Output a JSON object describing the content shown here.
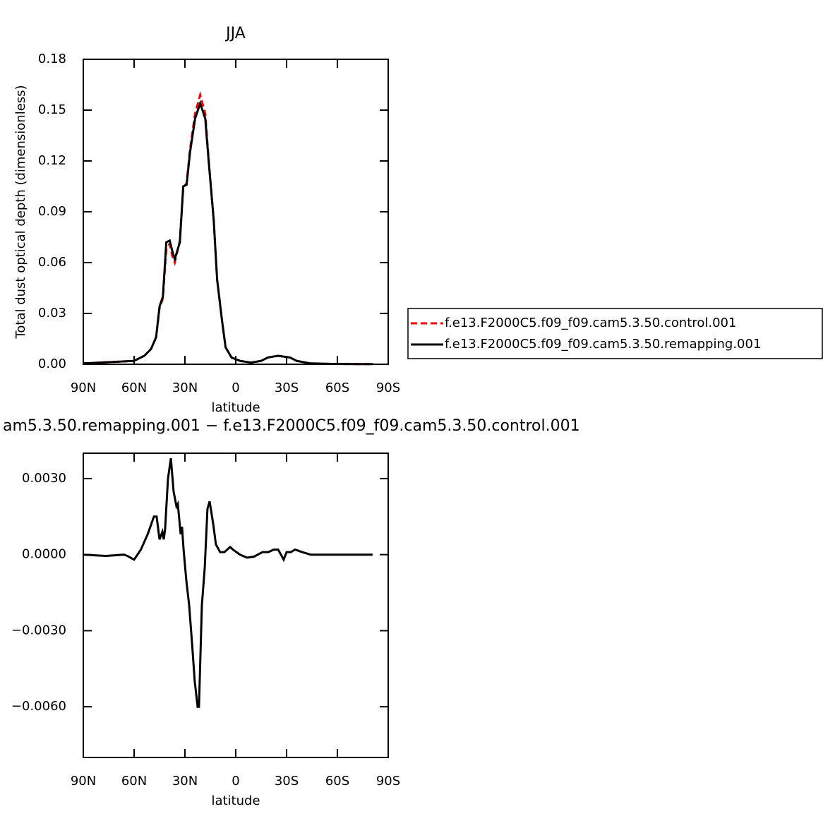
{
  "chart_data": [
    {
      "type": "line",
      "title": "JJA",
      "ylabel": "Total dust optical depth (dimensionless)",
      "xlabel": "latitude",
      "x": [
        90,
        60,
        54,
        50,
        47,
        45,
        43,
        41,
        39,
        37.5,
        36,
        33,
        31,
        29,
        27,
        24,
        21,
        18,
        16,
        13,
        11,
        8,
        6,
        2.5,
        -2.5,
        -9,
        -15,
        -19,
        -25,
        -32,
        -36,
        -44,
        -57,
        -81
      ],
      "series": [
        {
          "name": "f.e13.F2000C5.f09_f09.cam5.3.50.control.001",
          "color": "#ff0000",
          "dash": true,
          "values": [
            0.0005,
            0.002,
            0.005,
            0.009,
            0.016,
            0.033,
            0.039,
            0.068,
            0.071,
            0.064,
            0.06,
            0.073,
            0.104,
            0.107,
            0.127,
            0.148,
            0.159,
            0.148,
            0.121,
            0.085,
            0.05,
            0.025,
            0.01,
            0.004,
            0.002,
            0.001,
            0.002,
            0.004,
            0.005,
            0.004,
            0.002,
            0.0005,
            0.0002,
            0.0001
          ]
        },
        {
          "name": "f.e13.F2000C5.f09_f09.cam5.3.50.remapping.001",
          "color": "#000000",
          "dash": false,
          "values": [
            0.0005,
            0.002,
            0.005,
            0.009,
            0.016,
            0.034,
            0.04,
            0.072,
            0.073,
            0.067,
            0.062,
            0.072,
            0.105,
            0.106,
            0.125,
            0.145,
            0.154,
            0.145,
            0.12,
            0.085,
            0.05,
            0.025,
            0.01,
            0.004,
            0.002,
            0.001,
            0.002,
            0.004,
            0.005,
            0.004,
            0.002,
            0.0005,
            0.0002,
            0.0001
          ]
        }
      ],
      "xlim": [
        90,
        -90
      ],
      "xticks": [
        {
          "value": 90,
          "label": "90N"
        },
        {
          "value": 60,
          "label": "60N"
        },
        {
          "value": 30,
          "label": "30N"
        },
        0,
        {
          "value": -30,
          "label": "30S"
        },
        {
          "value": -60,
          "label": "60S"
        },
        {
          "value": -90,
          "label": "90S"
        }
      ],
      "ylim": [
        0,
        0.18
      ],
      "yticks": [
        {
          "value": 0,
          "label": "0.00"
        },
        0.03,
        0.06,
        0.09,
        0.12,
        0.15,
        0.18
      ]
    },
    {
      "type": "line",
      "title": "am5.3.50.remapping.001 − f.e13.F2000C5.f09_f09.cam5.3.50.control.001",
      "xlabel": "latitude",
      "x": [
        90,
        76.7,
        66,
        64,
        60,
        56,
        52,
        48.3,
        46.7,
        45,
        43.3,
        42.5,
        41.7,
        40,
        38.3,
        36.7,
        35,
        34.2,
        32.5,
        31.7,
        30.8,
        29.2,
        27.5,
        25.8,
        24.2,
        22.5,
        21.7,
        20,
        18.3,
        16.7,
        15.4,
        13.3,
        11.7,
        9.2,
        6.7,
        5,
        3.3,
        1.7,
        -2.5,
        -6.7,
        -10.8,
        -15.8,
        -19.2,
        -22.5,
        -25,
        -26.7,
        -28.3,
        -30,
        -32.5,
        -35,
        -39.2,
        -44.2,
        -56.7,
        -80.8
      ],
      "series": [
        {
          "color": "#000000",
          "dash": false,
          "values": [
            0,
            -5e-05,
            0,
            -5e-05,
            -0.0002,
            0.0002,
            0.0008,
            0.0015,
            0.0015,
            0.0006,
            0.0009,
            0.0006,
            0.001,
            0.003,
            0.0038,
            0.0025,
            0.0019,
            0.002,
            0.0008,
            0.0011,
            0.0002,
            -0.001,
            -0.002,
            -0.0035,
            -0.005,
            -0.006,
            -0.006,
            -0.002,
            -0.0005,
            0.0018,
            0.0021,
            0.0012,
            0.0004,
            0.0001,
            0.0001,
            0.0002,
            0.0003,
            0.0002,
            0,
            -0.00012,
            -8e-05,
            0.0001,
            0.0001,
            0.0002,
            0.0002,
            0,
            -0.0002,
            0.0001,
            0.0001,
            0.0002,
            0.0001,
            0,
            0,
            0
          ]
        }
      ],
      "xlim": [
        90,
        -90
      ],
      "xticks": [
        {
          "value": 90,
          "label": "90N"
        },
        {
          "value": 60,
          "label": "60N"
        },
        {
          "value": 30,
          "label": "30N"
        },
        0,
        {
          "value": -30,
          "label": "30S"
        },
        {
          "value": -60,
          "label": "60S"
        },
        {
          "value": -90,
          "label": "90S"
        }
      ],
      "ylim": [
        -0.008,
        0.004
      ],
      "yticks": [
        {
          "value": -0.006,
          "label": "−0.0060"
        },
        {
          "value": -0.003,
          "label": "−0.0030"
        },
        {
          "value": 0,
          "label": "0.0000"
        },
        {
          "value": 0.003,
          "label": "0.0030"
        }
      ]
    }
  ]
}
